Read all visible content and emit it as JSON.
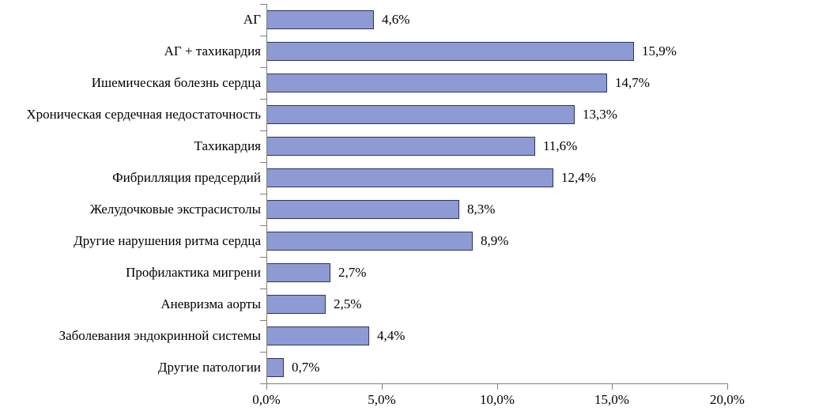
{
  "chart_data": {
    "type": "bar",
    "orientation": "horizontal",
    "title": "",
    "xlabel": "",
    "ylabel": "",
    "categories": [
      "АГ",
      "АГ + тахикардия",
      "Ишемическая болезнь сердца",
      "Хроническая сердечная недостаточность",
      "Тахикардия",
      "Фибрилляция предсердий",
      "Желудочковые экстрасистолы",
      "Другие нарушения ритма сердца",
      "Профилактика мигрени",
      "Аневризма аорты",
      "Заболевания эндокринной системы",
      "Другие патологии"
    ],
    "values": [
      4.6,
      15.9,
      14.7,
      13.3,
      11.6,
      12.4,
      8.3,
      8.9,
      2.7,
      2.5,
      4.4,
      0.7
    ],
    "value_labels": [
      "4,6%",
      "15,9%",
      "14,7%",
      "13,3%",
      "11,6%",
      "12,4%",
      "8,3%",
      "8,9%",
      "2,7%",
      "2,5%",
      "4,4%",
      "0,7%"
    ],
    "xlim": [
      0,
      20
    ],
    "x_tick_values": [
      0,
      5,
      10,
      15,
      20
    ],
    "x_tick_labels": [
      "0,0%",
      "5,0%",
      "10,0%",
      "15,0%",
      "20,0%"
    ],
    "grid": false,
    "legend": false,
    "colors": {
      "bar_fill": "#8d9ad3",
      "bar_border": "#2e3560",
      "axis": "#808080",
      "text": "#000000"
    }
  }
}
